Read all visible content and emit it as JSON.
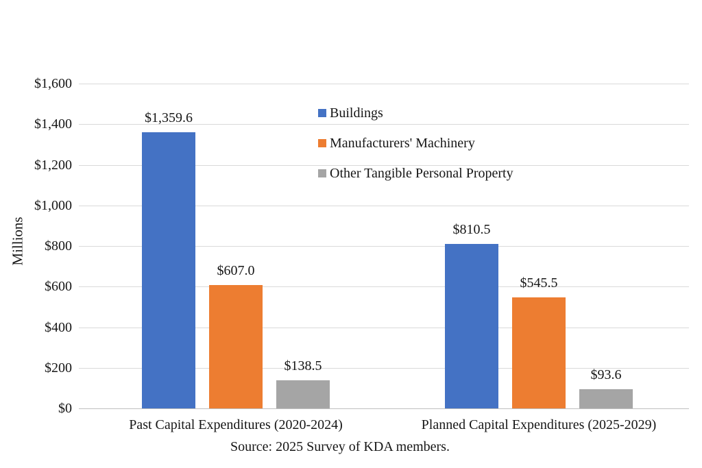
{
  "chart_data": {
    "type": "bar",
    "title": "",
    "categories": [
      "Past Capital Expenditures (2020-2024)",
      "Planned Capital Expenditures (2025-2029)"
    ],
    "series": [
      {
        "name": "Buildings",
        "color": "#4472C4",
        "values": [
          1359.6,
          810.5
        ],
        "labels": [
          "$1,359.6",
          "$810.5"
        ]
      },
      {
        "name": "Manufacturers' Machinery",
        "color": "#ED7D31",
        "values": [
          607.0,
          545.5
        ],
        "labels": [
          "$607.0",
          "$545.5"
        ]
      },
      {
        "name": "Other Tangible Personal Property",
        "color": "#A5A5A5",
        "values": [
          138.5,
          93.6
        ],
        "labels": [
          "$138.5",
          "$93.6"
        ]
      }
    ],
    "ylabel": "Millions",
    "ylim": [
      0,
      1600
    ],
    "ytick_step": 200,
    "y_ticks": [
      "$0",
      "$200",
      "$400",
      "$600",
      "$800",
      "$1,000",
      "$1,200",
      "$1,400",
      "$1,600"
    ],
    "grid": true,
    "gridline_color": "#D9D9D9",
    "legend_position": "inside-top-center"
  },
  "source_note": "Source: 2025 Survey of KDA members."
}
